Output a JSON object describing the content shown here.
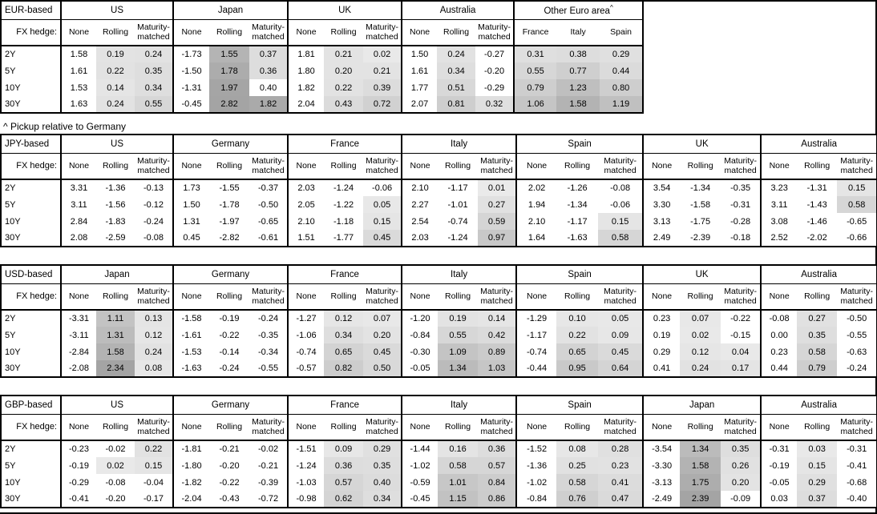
{
  "footnote": "^ Pickup relative to Germany",
  "fx_hedge_label": "FX hedge:",
  "hedge_columns": [
    "None",
    "Rolling",
    "Maturity-matched"
  ],
  "row_labels": [
    "2Y",
    "5Y",
    "10Y",
    "30Y"
  ],
  "colors": {
    "border": "#000000",
    "background": "#ffffff",
    "text": "#000000"
  },
  "heatmap": {
    "description": "Hedged-yield pickup cells with value >= 0 are shaded grey; darker grey means larger pickup. 'None' columns are never shaded.",
    "light_gray_level": 234,
    "dark_gray_level": 164,
    "value_cap": 2.0,
    "unshaded_exceptions": [
      {
        "table_id": "eur",
        "group": "Japan",
        "row_index": 2,
        "col_index": 2
      }
    ]
  },
  "tables": [
    {
      "id": "eur",
      "base_label": "EUR-based",
      "groups": [
        {
          "name": "US",
          "rows": [
            [
              1.58,
              0.19,
              0.24
            ],
            [
              1.61,
              0.22,
              0.35
            ],
            [
              1.53,
              0.14,
              0.34
            ],
            [
              1.63,
              0.24,
              0.55
            ]
          ]
        },
        {
          "name": "Japan",
          "rows": [
            [
              -1.73,
              1.55,
              0.37
            ],
            [
              -1.5,
              1.78,
              0.36
            ],
            [
              -1.31,
              1.97,
              0.4
            ],
            [
              -0.45,
              2.82,
              1.82
            ]
          ]
        },
        {
          "name": "UK",
          "rows": [
            [
              1.81,
              0.21,
              0.02
            ],
            [
              1.8,
              0.2,
              0.21
            ],
            [
              1.82,
              0.22,
              0.39
            ],
            [
              2.04,
              0.43,
              0.72
            ]
          ]
        },
        {
          "name": "Australia",
          "rows": [
            [
              1.5,
              0.24,
              -0.27
            ],
            [
              1.61,
              0.34,
              -0.2
            ],
            [
              1.77,
              0.51,
              -0.29
            ],
            [
              2.07,
              0.81,
              0.32
            ]
          ]
        },
        {
          "name": "Other Euro area",
          "superscript": "^",
          "columns": [
            "France",
            "Italy",
            "Spain"
          ],
          "shaded_columns": [
            0,
            1,
            2
          ],
          "rows": [
            [
              0.31,
              0.38,
              0.29
            ],
            [
              0.55,
              0.77,
              0.44
            ],
            [
              0.79,
              1.23,
              0.8
            ],
            [
              1.06,
              1.58,
              1.19
            ]
          ]
        }
      ]
    },
    {
      "id": "jpy",
      "base_label": "JPY-based",
      "groups": [
        {
          "name": "US",
          "rows": [
            [
              3.31,
              -1.36,
              -0.13
            ],
            [
              3.11,
              -1.56,
              -0.12
            ],
            [
              2.84,
              -1.83,
              -0.24
            ],
            [
              2.08,
              -2.59,
              -0.08
            ]
          ]
        },
        {
          "name": "Germany",
          "rows": [
            [
              1.73,
              -1.55,
              -0.37
            ],
            [
              1.5,
              -1.78,
              -0.5
            ],
            [
              1.31,
              -1.97,
              -0.65
            ],
            [
              0.45,
              -2.82,
              -0.61
            ]
          ]
        },
        {
          "name": "France",
          "rows": [
            [
              2.03,
              -1.24,
              -0.06
            ],
            [
              2.05,
              -1.22,
              0.05
            ],
            [
              2.1,
              -1.18,
              0.15
            ],
            [
              1.51,
              -1.77,
              0.45
            ]
          ]
        },
        {
          "name": "Italy",
          "rows": [
            [
              2.1,
              -1.17,
              0.01
            ],
            [
              2.27,
              -1.01,
              0.27
            ],
            [
              2.54,
              -0.74,
              0.59
            ],
            [
              2.03,
              -1.24,
              0.97
            ]
          ]
        },
        {
          "name": "Spain",
          "rows": [
            [
              2.02,
              -1.26,
              -0.08
            ],
            [
              1.94,
              -1.34,
              -0.06
            ],
            [
              2.1,
              -1.17,
              0.15
            ],
            [
              1.64,
              -1.63,
              0.58
            ]
          ]
        },
        {
          "name": "UK",
          "rows": [
            [
              3.54,
              -1.34,
              -0.35
            ],
            [
              3.3,
              -1.58,
              -0.31
            ],
            [
              3.13,
              -1.75,
              -0.28
            ],
            [
              2.49,
              -2.39,
              -0.18
            ]
          ]
        },
        {
          "name": "Australia",
          "rows": [
            [
              3.23,
              -1.31,
              0.15
            ],
            [
              3.11,
              -1.43,
              0.58
            ],
            [
              3.08,
              -1.46,
              -0.65
            ],
            [
              2.52,
              -2.02,
              -0.66
            ]
          ]
        }
      ]
    },
    {
      "id": "usd",
      "base_label": "USD-based",
      "groups": [
        {
          "name": "Japan",
          "rows": [
            [
              -3.31,
              1.11,
              0.13
            ],
            [
              -3.11,
              1.31,
              0.12
            ],
            [
              -2.84,
              1.58,
              0.24
            ],
            [
              -2.08,
              2.34,
              0.08
            ]
          ]
        },
        {
          "name": "Germany",
          "rows": [
            [
              -1.58,
              -0.19,
              -0.24
            ],
            [
              -1.61,
              -0.22,
              -0.35
            ],
            [
              -1.53,
              -0.14,
              -0.34
            ],
            [
              -1.63,
              -0.24,
              -0.55
            ]
          ]
        },
        {
          "name": "France",
          "rows": [
            [
              -1.27,
              0.12,
              0.07
            ],
            [
              -1.06,
              0.34,
              0.2
            ],
            [
              -0.74,
              0.65,
              0.45
            ],
            [
              -0.57,
              0.82,
              0.5
            ]
          ]
        },
        {
          "name": "Italy",
          "rows": [
            [
              -1.2,
              0.19,
              0.14
            ],
            [
              -0.84,
              0.55,
              0.42
            ],
            [
              -0.3,
              1.09,
              0.89
            ],
            [
              -0.05,
              1.34,
              1.03
            ]
          ]
        },
        {
          "name": "Spain",
          "rows": [
            [
              -1.29,
              0.1,
              0.05
            ],
            [
              -1.17,
              0.22,
              0.09
            ],
            [
              -0.74,
              0.65,
              0.45
            ],
            [
              -0.44,
              0.95,
              0.64
            ]
          ]
        },
        {
          "name": "UK",
          "rows": [
            [
              0.23,
              0.07,
              -0.22
            ],
            [
              0.19,
              0.02,
              -0.15
            ],
            [
              0.29,
              0.12,
              0.04
            ],
            [
              0.41,
              0.24,
              0.17
            ]
          ]
        },
        {
          "name": "Australia",
          "rows": [
            [
              -0.08,
              0.27,
              -0.5
            ],
            [
              0.0,
              0.35,
              -0.55
            ],
            [
              0.23,
              0.58,
              -0.63
            ],
            [
              0.44,
              0.79,
              -0.24
            ]
          ]
        }
      ]
    },
    {
      "id": "gbp",
      "base_label": "GBP-based",
      "groups": [
        {
          "name": "US",
          "rows": [
            [
              -0.23,
              -0.02,
              0.22
            ],
            [
              -0.19,
              0.02,
              0.15
            ],
            [
              -0.29,
              -0.08,
              -0.04
            ],
            [
              -0.41,
              -0.2,
              -0.17
            ]
          ]
        },
        {
          "name": "Germany",
          "rows": [
            [
              -1.81,
              -0.21,
              -0.02
            ],
            [
              -1.8,
              -0.2,
              -0.21
            ],
            [
              -1.82,
              -0.22,
              -0.39
            ],
            [
              -2.04,
              -0.43,
              -0.72
            ]
          ]
        },
        {
          "name": "France",
          "rows": [
            [
              -1.51,
              0.09,
              0.29
            ],
            [
              -1.24,
              0.36,
              0.35
            ],
            [
              -1.03,
              0.57,
              0.4
            ],
            [
              -0.98,
              0.62,
              0.34
            ]
          ]
        },
        {
          "name": "Italy",
          "rows": [
            [
              -1.44,
              0.16,
              0.36
            ],
            [
              -1.02,
              0.58,
              0.57
            ],
            [
              -0.59,
              1.01,
              0.84
            ],
            [
              -0.45,
              1.15,
              0.86
            ]
          ]
        },
        {
          "name": "Spain",
          "rows": [
            [
              -1.52,
              0.08,
              0.28
            ],
            [
              -1.36,
              0.25,
              0.23
            ],
            [
              -1.02,
              0.58,
              0.41
            ],
            [
              -0.84,
              0.76,
              0.47
            ]
          ]
        },
        {
          "name": "Japan",
          "rows": [
            [
              -3.54,
              1.34,
              0.35
            ],
            [
              -3.3,
              1.58,
              0.26
            ],
            [
              -3.13,
              1.75,
              0.2
            ],
            [
              -2.49,
              2.39,
              -0.09
            ]
          ]
        },
        {
          "name": "Australia",
          "rows": [
            [
              -0.31,
              0.03,
              -0.31
            ],
            [
              -0.19,
              0.15,
              -0.41
            ],
            [
              -0.05,
              0.29,
              -0.68
            ],
            [
              0.03,
              0.37,
              -0.4
            ]
          ]
        }
      ]
    }
  ]
}
